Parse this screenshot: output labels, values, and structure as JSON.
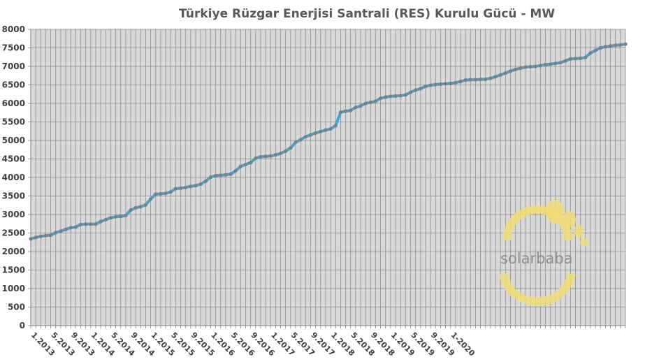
{
  "chart_data": {
    "type": "line",
    "title": "Türkiye Rüzgar Enerjisi Santrali (RES) Kurulu Gücü - MW",
    "xlabel": "",
    "ylabel": "",
    "ylim": [
      0,
      8000
    ],
    "y_ticks": [
      0,
      500,
      1000,
      1500,
      2000,
      2500,
      3000,
      3500,
      4000,
      4500,
      5000,
      5500,
      6000,
      6500,
      7000,
      7500,
      8000
    ],
    "x_tick_labels": [
      "1.2013",
      "5.2013",
      "9.2013",
      "1.2014",
      "5.2014",
      "9.2014",
      "1.2015",
      "5.2015",
      "9.2015",
      "1.2016",
      "5.2016",
      "9.2016",
      "1.2017",
      "5.2017",
      "9.2017",
      "1.2018",
      "5.2018",
      "9.2018",
      "1.2019",
      "5.2019",
      "9.2019",
      "1-2020"
    ],
    "grid": true,
    "line_color": "#33a9e0",
    "marker_color": "#7f7f7f",
    "background_color": "#d9d9d9",
    "series": [
      {
        "x_start": "1.2013",
        "x_end": "1-2020",
        "values": [
          2340,
          2380,
          2410,
          2430,
          2440,
          2510,
          2550,
          2600,
          2640,
          2660,
          2730,
          2740,
          2740,
          2740,
          2810,
          2860,
          2910,
          2940,
          2950,
          2970,
          3120,
          3180,
          3210,
          3260,
          3420,
          3550,
          3560,
          3570,
          3610,
          3700,
          3710,
          3730,
          3760,
          3780,
          3820,
          3900,
          4010,
          4050,
          4060,
          4070,
          4090,
          4180,
          4300,
          4350,
          4400,
          4520,
          4560,
          4570,
          4580,
          4610,
          4650,
          4710,
          4800,
          4950,
          5020,
          5100,
          5150,
          5200,
          5240,
          5280,
          5310,
          5400,
          5760,
          5790,
          5810,
          5890,
          5930,
          6000,
          6030,
          6060,
          6140,
          6170,
          6190,
          6200,
          6210,
          6230,
          6300,
          6360,
          6400,
          6460,
          6490,
          6510,
          6520,
          6530,
          6540,
          6560,
          6590,
          6630,
          6640,
          6640,
          6650,
          6650,
          6680,
          6720,
          6770,
          6820,
          6870,
          6920,
          6950,
          6980,
          6990,
          7000,
          7020,
          7050,
          7060,
          7080,
          7100,
          7150,
          7200,
          7210,
          7220,
          7240,
          7360,
          7430,
          7500,
          7530,
          7550,
          7570,
          7580,
          7600
        ]
      }
    ]
  },
  "watermark": {
    "text": "solarbaba",
    "color": "#f1dc73"
  }
}
